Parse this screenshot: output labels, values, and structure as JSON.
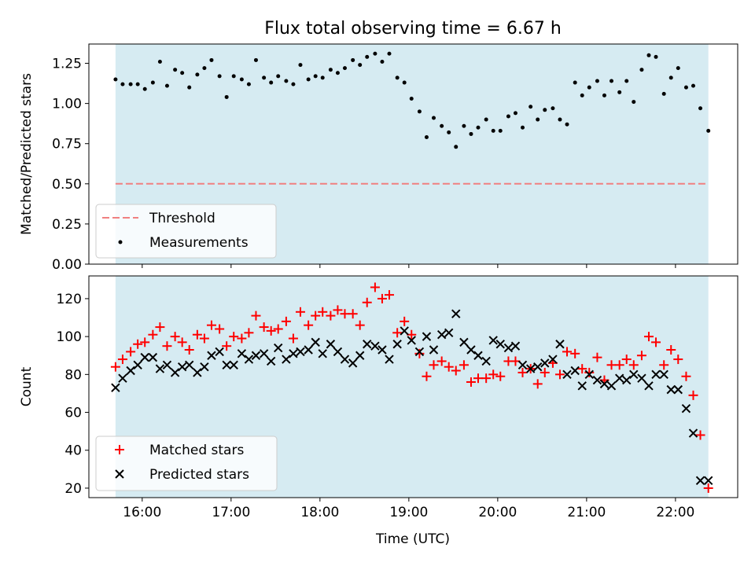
{
  "title": "Flux total observing time = 6.67 h",
  "colors": {
    "observing_window": "#add8e6",
    "threshold": "#f08080",
    "matched": "#ff0000",
    "predicted": "#000000",
    "measurements": "#000000"
  },
  "chart_data": [
    {
      "type": "scatter",
      "title": "Flux total observing time = 6.67 h",
      "xlabel": "",
      "ylabel": "Matched/Predicted stars",
      "x_unit": "hours (UTC)",
      "xlim": [
        15.4,
        22.7
      ],
      "ylim": [
        0,
        1.37
      ],
      "xticks": [
        "16:00",
        "17:00",
        "18:00",
        "19:00",
        "20:00",
        "21:00",
        "22:00"
      ],
      "yticks": [
        "0.00",
        "0.25",
        "0.50",
        "0.75",
        "1.00",
        "1.25"
      ],
      "shaded_span": [
        15.7,
        22.37
      ],
      "threshold": 0.5,
      "legend": {
        "placement": "lower-left",
        "entries": [
          "Threshold",
          "Measurements"
        ]
      },
      "series": [
        {
          "name": "Measurements",
          "x": [
            15.7,
            15.78,
            15.87,
            15.95,
            16.03,
            16.12,
            16.2,
            16.28,
            16.37,
            16.45,
            16.53,
            16.62,
            16.7,
            16.78,
            16.87,
            16.95,
            17.03,
            17.12,
            17.2,
            17.28,
            17.37,
            17.45,
            17.53,
            17.62,
            17.7,
            17.78,
            17.87,
            17.95,
            18.03,
            18.12,
            18.2,
            18.28,
            18.37,
            18.45,
            18.53,
            18.62,
            18.7,
            18.78,
            18.87,
            18.95,
            19.03,
            19.12,
            19.2,
            19.28,
            19.37,
            19.45,
            19.53,
            19.62,
            19.7,
            19.78,
            19.87,
            19.95,
            20.03,
            20.12,
            20.2,
            20.28,
            20.37,
            20.45,
            20.53,
            20.62,
            20.7,
            20.78,
            20.87,
            20.95,
            21.03,
            21.12,
            21.2,
            21.28,
            21.37,
            21.45,
            21.53,
            21.62,
            21.7,
            21.78,
            21.87,
            21.95,
            22.03,
            22.12,
            22.2,
            22.28,
            22.37
          ],
          "y": [
            1.15,
            1.12,
            1.12,
            1.12,
            1.09,
            1.13,
            1.26,
            1.11,
            1.21,
            1.19,
            1.1,
            1.18,
            1.22,
            1.27,
            1.17,
            1.04,
            1.17,
            1.15,
            1.12,
            1.27,
            1.16,
            1.13,
            1.17,
            1.14,
            1.12,
            1.24,
            1.15,
            1.17,
            1.16,
            1.21,
            1.19,
            1.22,
            1.27,
            1.24,
            1.29,
            1.31,
            1.26,
            1.31,
            1.16,
            1.13,
            1.03,
            0.95,
            0.79,
            0.91,
            0.86,
            0.82,
            0.73,
            0.86,
            0.81,
            0.85,
            0.9,
            0.83,
            0.83,
            0.92,
            0.94,
            0.85,
            0.98,
            0.9,
            0.96,
            0.97,
            0.9,
            0.87,
            1.13,
            1.05,
            1.1,
            1.14,
            1.05,
            1.14,
            1.07,
            1.14,
            1.01,
            1.21,
            1.3,
            1.29,
            1.06,
            1.16,
            1.22,
            1.1,
            1.11,
            0.97,
            0.83
          ]
        }
      ]
    },
    {
      "type": "scatter",
      "title": "",
      "xlabel": "Time (UTC)",
      "ylabel": "Count",
      "x_unit": "hours (UTC)",
      "xlim": [
        15.4,
        22.7
      ],
      "ylim": [
        15,
        132
      ],
      "xticks": [
        "16:00",
        "17:00",
        "18:00",
        "19:00",
        "20:00",
        "21:00",
        "22:00"
      ],
      "yticks": [
        "20",
        "40",
        "60",
        "80",
        "100",
        "120"
      ],
      "shaded_span": [
        15.7,
        22.37
      ],
      "legend": {
        "placement": "lower-left",
        "entries": [
          "Matched stars",
          "Predicted stars"
        ]
      },
      "series": [
        {
          "name": "Matched stars",
          "marker": "plus",
          "x": [
            15.7,
            15.78,
            15.87,
            15.95,
            16.03,
            16.12,
            16.2,
            16.28,
            16.37,
            16.45,
            16.53,
            16.62,
            16.7,
            16.78,
            16.87,
            16.95,
            17.03,
            17.12,
            17.2,
            17.28,
            17.37,
            17.45,
            17.53,
            17.62,
            17.7,
            17.78,
            17.87,
            17.95,
            18.03,
            18.12,
            18.2,
            18.28,
            18.37,
            18.45,
            18.53,
            18.62,
            18.7,
            18.78,
            18.87,
            18.95,
            19.03,
            19.12,
            19.2,
            19.28,
            19.37,
            19.45,
            19.53,
            19.62,
            19.7,
            19.78,
            19.87,
            19.95,
            20.03,
            20.12,
            20.2,
            20.28,
            20.37,
            20.45,
            20.53,
            20.62,
            20.7,
            20.78,
            20.87,
            20.95,
            21.03,
            21.12,
            21.2,
            21.28,
            21.37,
            21.45,
            21.53,
            21.62,
            21.7,
            21.78,
            21.87,
            21.95,
            22.03,
            22.12,
            22.2,
            22.28,
            22.37
          ],
          "y": [
            84,
            88,
            92,
            96,
            97,
            101,
            105,
            95,
            100,
            97,
            93,
            101,
            99,
            106,
            104,
            95,
            100,
            99,
            102,
            111,
            105,
            103,
            104,
            108,
            99,
            113,
            106,
            111,
            113,
            111,
            114,
            112,
            112,
            106,
            118,
            126,
            120,
            122,
            102,
            108,
            101,
            91,
            79,
            85,
            87,
            84,
            82,
            85,
            76,
            78,
            78,
            80,
            79,
            87,
            87,
            81,
            83,
            75,
            81,
            86,
            80,
            92,
            91,
            83,
            81,
            89,
            77,
            85,
            85,
            88,
            85,
            90,
            100,
            97,
            85,
            93,
            88,
            79,
            69,
            48,
            20
          ]
        },
        {
          "name": "Predicted stars",
          "marker": "x",
          "x": [
            15.7,
            15.78,
            15.87,
            15.95,
            16.03,
            16.12,
            16.2,
            16.28,
            16.37,
            16.45,
            16.53,
            16.62,
            16.7,
            16.78,
            16.87,
            16.95,
            17.03,
            17.12,
            17.2,
            17.28,
            17.37,
            17.45,
            17.53,
            17.62,
            17.7,
            17.78,
            17.87,
            17.95,
            18.03,
            18.12,
            18.2,
            18.28,
            18.37,
            18.45,
            18.53,
            18.62,
            18.7,
            18.78,
            18.87,
            18.95,
            19.03,
            19.12,
            19.2,
            19.28,
            19.37,
            19.45,
            19.53,
            19.62,
            19.7,
            19.78,
            19.87,
            19.95,
            20.03,
            20.12,
            20.2,
            20.28,
            20.37,
            20.45,
            20.53,
            20.62,
            20.7,
            20.78,
            20.87,
            20.95,
            21.03,
            21.12,
            21.2,
            21.28,
            21.37,
            21.45,
            21.53,
            21.62,
            21.7,
            21.78,
            21.87,
            21.95,
            22.03,
            22.12,
            22.2,
            22.28,
            22.37
          ],
          "y": [
            73,
            78,
            82,
            85,
            89,
            89,
            83,
            85,
            81,
            84,
            85,
            81,
            84,
            90,
            92,
            85,
            85,
            91,
            88,
            90,
            91,
            87,
            94,
            88,
            91,
            92,
            93,
            97,
            91,
            96,
            92,
            88,
            86,
            90,
            96,
            95,
            93,
            88,
            96,
            103,
            98,
            92,
            100,
            93,
            101,
            102,
            112,
            97,
            93,
            90,
            87,
            98,
            96,
            94,
            95,
            85,
            83,
            84,
            86,
            88,
            96,
            80,
            82,
            74,
            80,
            77,
            75,
            74,
            78,
            77,
            80,
            78,
            74,
            80,
            80,
            72,
            72,
            62,
            49,
            24,
            24
          ]
        }
      ]
    }
  ]
}
